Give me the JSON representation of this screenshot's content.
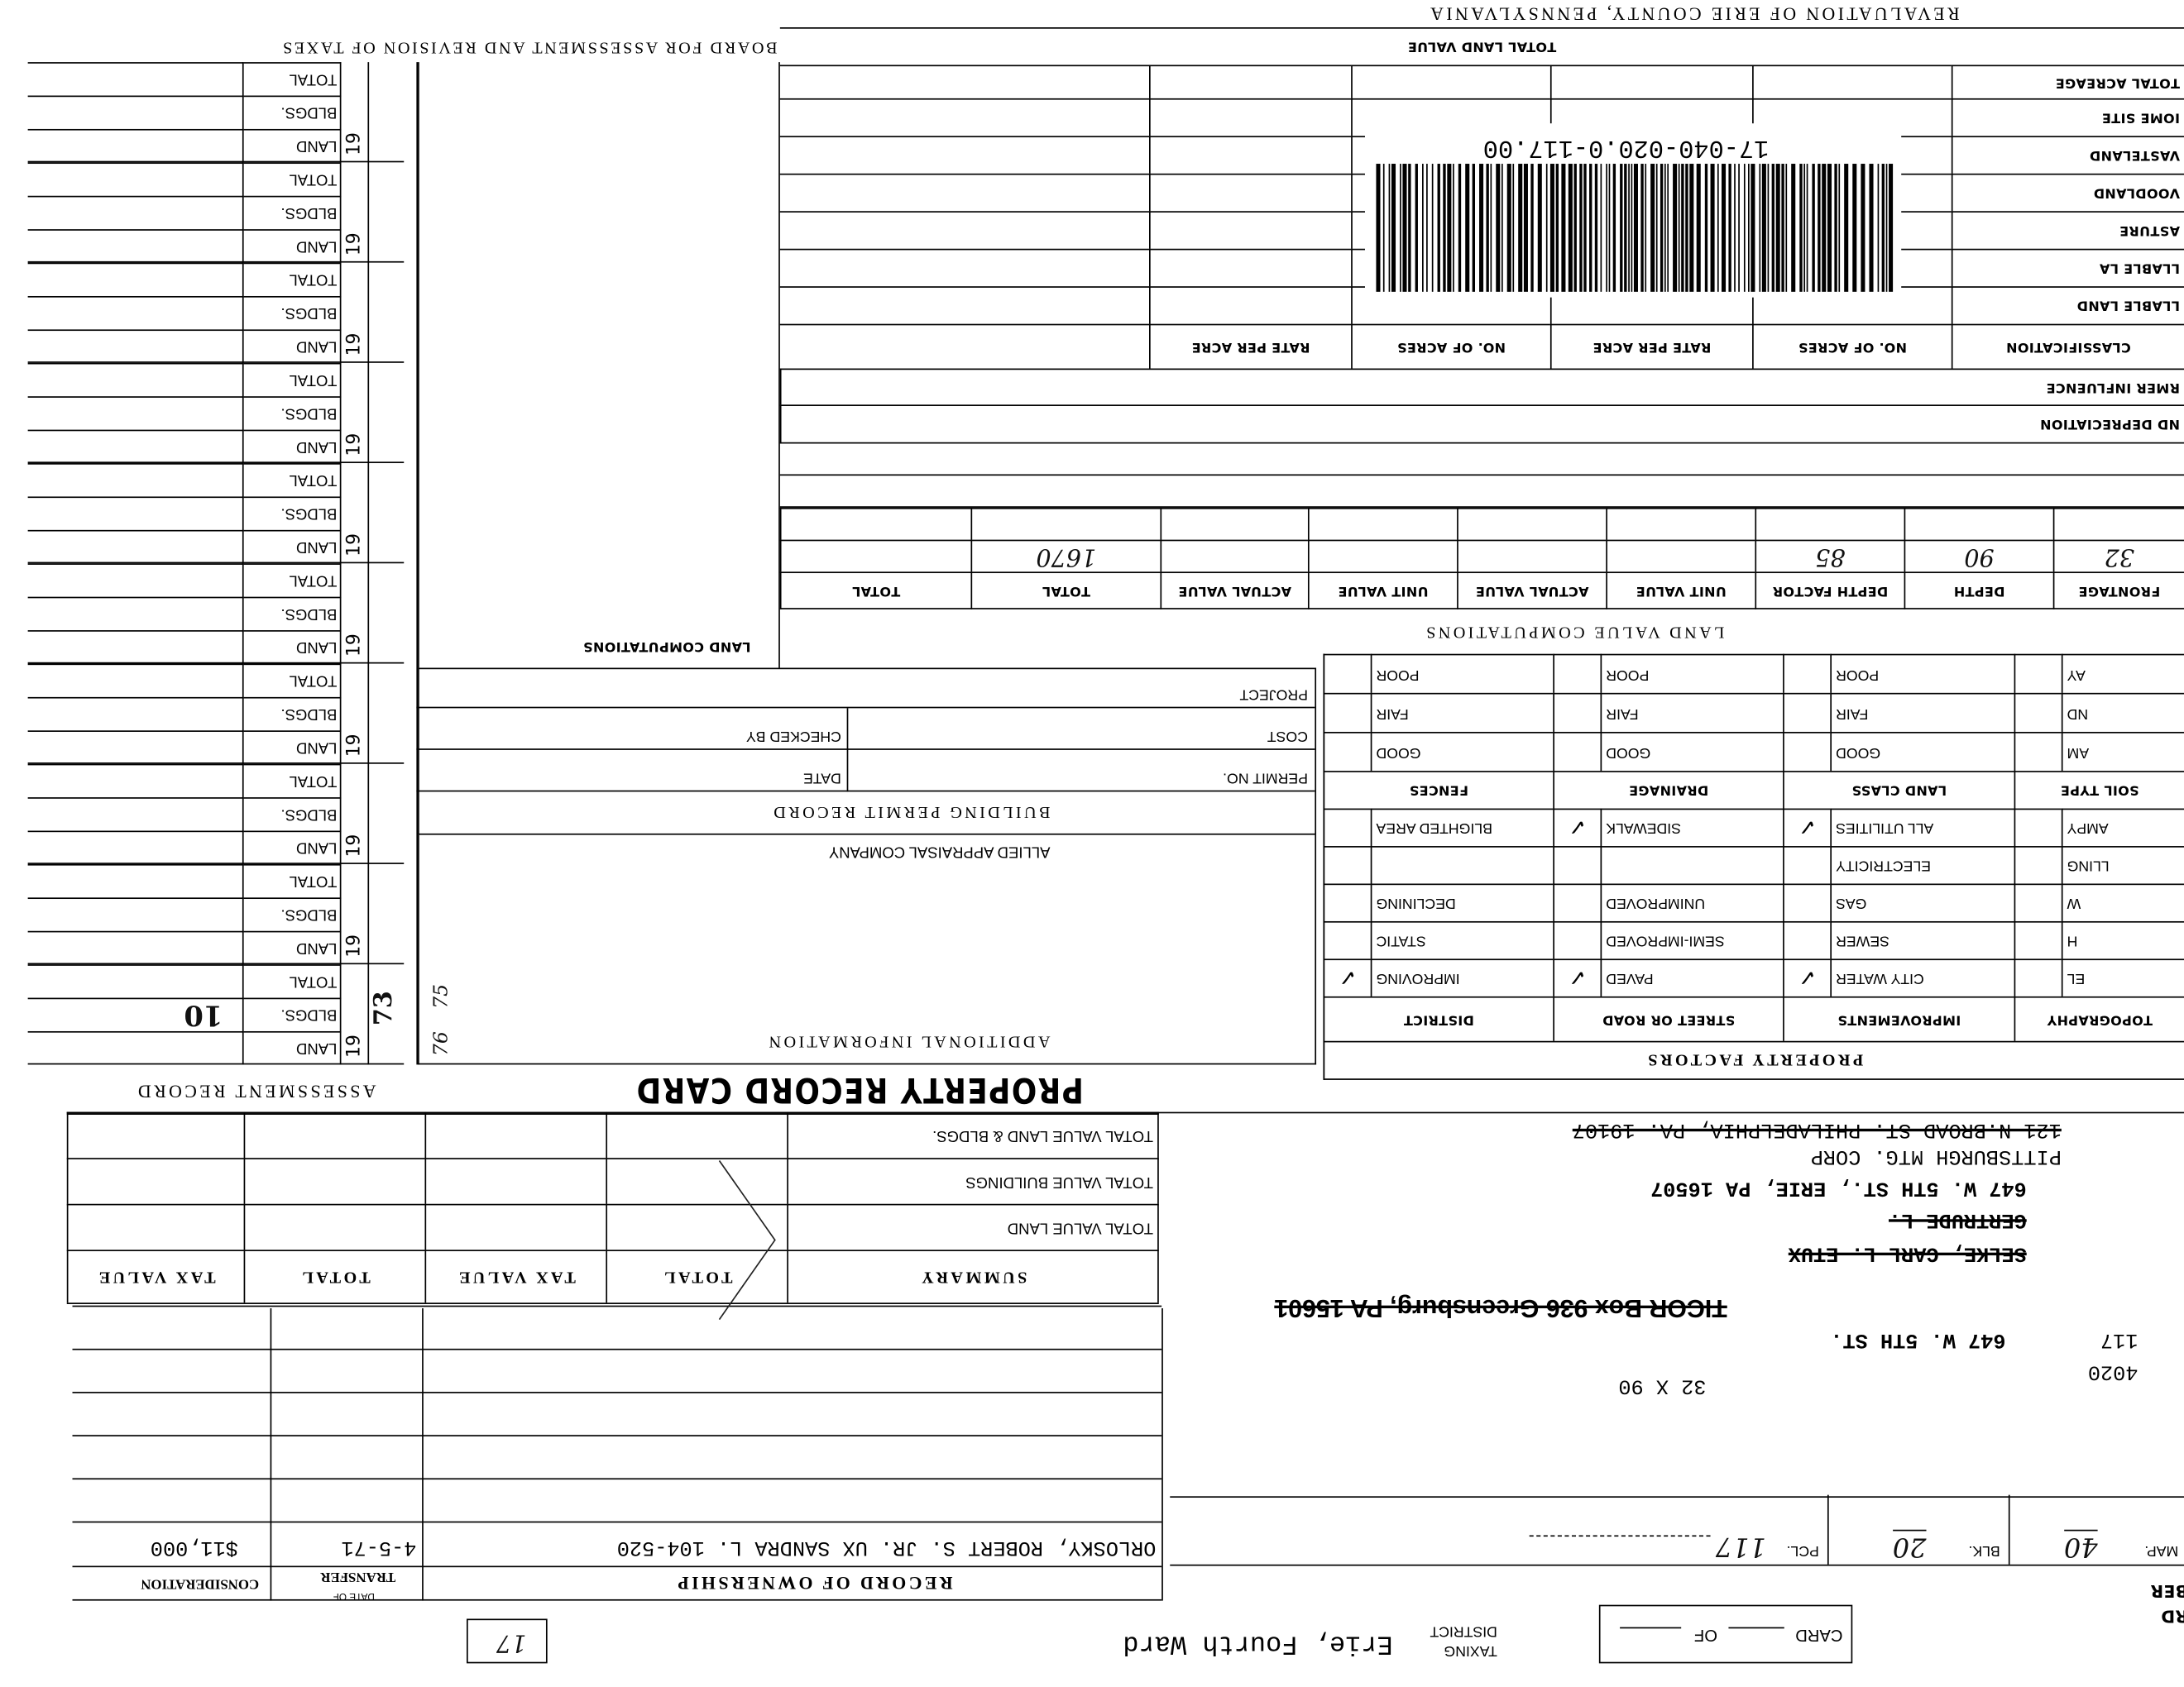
{
  "card": {
    "card_label": "CARD",
    "of_label": "OF",
    "number_fragment_1": "RD",
    "number_fragment_2": "BER"
  },
  "taxing_district": {
    "label_1": "TAXING",
    "label_2": "DISTRICT",
    "value": "Erie, Fourth Ward"
  },
  "corner_box_note": "17",
  "parcel": {
    "map_label": "MAP.",
    "map_value": "40",
    "blk_label": "BLK.",
    "blk_value": "20",
    "pcl_label": "PCL.",
    "pcl_value": "117"
  },
  "address_block": {
    "lot_size": "32 X 90",
    "code": "4020",
    "house_no": "117",
    "street": "647 W. 5TH ST.",
    "ticor": "TICOR Box 936 Greensburg, PA 15601",
    "owner_1": "SELKE, CARL L. ETUX",
    "owner_2": "GERTRUDE L.",
    "owner_address": "647 W. 5TH ST., ERIE, PA 16507",
    "mortgage": "PITTSBURGH MTG. CORP",
    "mortgage_address": "121 N.BROAD ST. PHILADELPHIA, PA. 19107"
  },
  "ownership": {
    "title": "RECORD OF OWNERSHIP",
    "date_header_1": "DATE OF",
    "date_header_2": "TRANSFER",
    "consideration_header": "CONSIDERATION",
    "entries": [
      {
        "name": "ORLOSKY, ROBERT S. JR. UX SANDRA L. 104-520",
        "date": "4-5-71",
        "consideration": "$11,000"
      }
    ]
  },
  "summary": {
    "headers": [
      "SUMMARY",
      "TOTAL",
      "TAX VALUE",
      "TOTAL",
      "TAX VALUE"
    ],
    "rows": [
      "TOTAL VALUE LAND",
      "TOTAL VALUE BUILDINGS",
      "TOTAL VALUE LAND & BLDGS."
    ]
  },
  "title": "PROPERTY RECORD CARD",
  "assessment_record": {
    "title": "ASSESSMENT RECORD",
    "row_labels": [
      "LAND",
      "BLDGS.",
      "TOTAL"
    ],
    "groups": [
      {
        "year": "19",
        "year_note": "73",
        "bldgs_note": "10"
      },
      {
        "year": "19"
      },
      {
        "year": "19"
      },
      {
        "year": "19"
      },
      {
        "year": "19"
      },
      {
        "year": "19"
      },
      {
        "year": "19"
      },
      {
        "year": "19"
      },
      {
        "year": "19"
      },
      {
        "year": "19"
      }
    ]
  },
  "additional_information": {
    "title": "ADDITIONAL INFORMATION",
    "company": "ALLIED APPRAISAL COMPANY",
    "margin_notes": [
      "76",
      "75"
    ]
  },
  "building_permit": {
    "title": "BUILDING PERMIT RECORD",
    "permit_no": "PERMIT NO.",
    "date": "DATE",
    "cost": "COST",
    "checked_by": "CHECKED BY",
    "project": "PROJECT"
  },
  "land_computations": {
    "title": "LAND COMPUTATIONS"
  },
  "property_factors": {
    "title": "PROPERTY FACTORS",
    "group1": {
      "headers": [
        "TOPOGRAPHY",
        "IMPROVEMENTS",
        "STREET OR ROAD",
        "DISTRICT"
      ],
      "rows": [
        [
          "EL",
          "CITY WATER",
          "PAVED",
          "IMPROVING"
        ],
        [
          "H",
          "SEWER",
          "SEMI-IMPROVED",
          "STATIC"
        ],
        [
          "W",
          "GAS",
          "UNIMPROVED",
          "DECLINING"
        ],
        [
          "LLING",
          "ELECTRICITY",
          "",
          ""
        ],
        [
          "AMPY",
          "ALL UTILITIES",
          "SIDEWALK",
          "BLIGHTED AREA"
        ]
      ],
      "checked": [
        [
          false,
          true,
          true,
          true
        ],
        [
          false,
          false,
          false,
          false
        ],
        [
          false,
          false,
          false,
          false
        ],
        [
          false,
          false,
          false,
          false
        ],
        [
          false,
          true,
          true,
          false
        ]
      ]
    },
    "group2": {
      "headers": [
        "SOIL TYPE",
        "LAND CLASS",
        "DRAINAGE",
        "FENCES"
      ],
      "rows": [
        [
          "AM",
          "GOOD",
          "GOOD",
          "GOOD"
        ],
        [
          "ND",
          "FAIR",
          "FAIR",
          "FAIR"
        ],
        [
          "AY",
          "POOR",
          "POOR",
          "POOR"
        ]
      ]
    }
  },
  "land_value_computations": {
    "title": "LAND VALUE COMPUTATIONS",
    "headers": [
      "FRONTAGE",
      "DEPTH",
      "DEPTH FACTOR",
      "UNIT VALUE",
      "ACTUAL VALUE",
      "UNIT VALUE",
      "ACTUAL VALUE",
      "TOTAL",
      "TOTAL"
    ],
    "row_1": [
      "32",
      "90",
      "85",
      "",
      "",
      "",
      "",
      "1670",
      ""
    ]
  },
  "classification": {
    "depreciation": "ND DEPRECIATION",
    "influence": "RMER INFLUENCE",
    "headers": [
      "CLASSIFICATION",
      "NO. OF ACRES",
      "RATE PER ACRE",
      "NO. OF ACRES",
      "RATE PER ACRE"
    ],
    "rows": [
      "LLABLE LAND",
      "LLABLE LA",
      "ASTURE",
      "VOODLAND",
      "VASTELAND",
      "IOME SITE"
    ],
    "total_acreage": "TOTAL ACREAGE",
    "total_land_value": "TOTAL LAND VALUE"
  },
  "barcode": {
    "text": "17-040-020.0-117.00"
  },
  "board_title": "BOARD FOR ASSESSMENT AND REVISION OF TAXES",
  "revaluation_title": "REVALUATION OF ERIE COUNTY, PENNSYLVANIA"
}
